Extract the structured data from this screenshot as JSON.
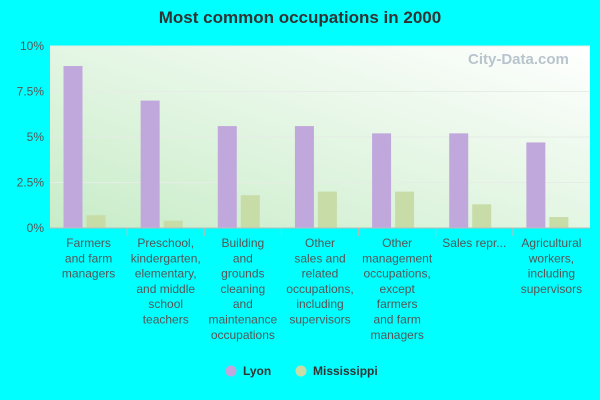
{
  "chart_data": {
    "type": "bar",
    "title": "Most common occupations in 2000",
    "categories": [
      [
        "Farmers",
        "and farm",
        "managers"
      ],
      [
        "Preschool,",
        "kindergarten,",
        "elementary,",
        "and middle",
        "school",
        "teachers"
      ],
      [
        "Building",
        "and",
        "grounds",
        "cleaning",
        "and",
        "maintenance",
        "occupations"
      ],
      [
        "Other",
        "sales and",
        "related",
        "occupations,",
        "including",
        "supervisors"
      ],
      [
        "Other",
        "management",
        "occupations,",
        "except",
        "farmers",
        "and farm",
        "managers"
      ],
      [
        "Sales repr..."
      ],
      [
        "Agricultural",
        "workers,",
        "including",
        "supervisors"
      ]
    ],
    "series": [
      {
        "name": "Lyon",
        "color": "#c0a8dc",
        "values": [
          8.9,
          7.0,
          5.6,
          5.6,
          5.2,
          5.2,
          4.7
        ]
      },
      {
        "name": "Mississippi",
        "color": "#c8dca8",
        "values": [
          0.7,
          0.4,
          1.8,
          2.0,
          2.0,
          1.3,
          0.6
        ]
      }
    ],
    "y_ticks": [
      "0%",
      "2.5%",
      "5%",
      "7.5%",
      "10%"
    ],
    "y_tick_values": [
      0,
      2.5,
      5,
      7.5,
      10
    ],
    "ylim": [
      0,
      10
    ],
    "legend_position": "bottom",
    "grid": true
  },
  "watermark": "City-Data.com"
}
